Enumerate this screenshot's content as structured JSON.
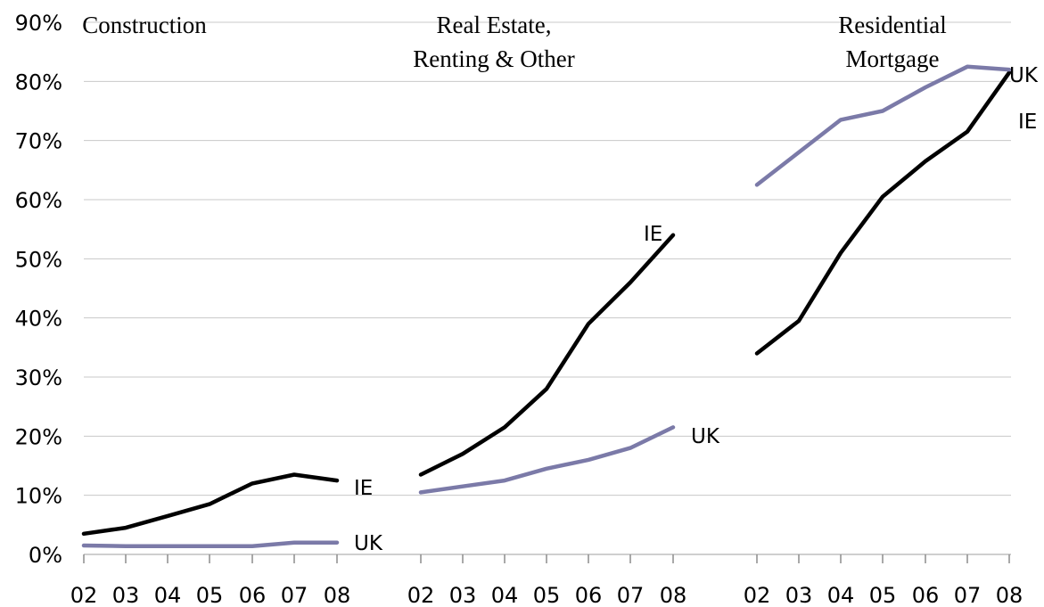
{
  "chart_data": {
    "type": "line",
    "y_tick_labels": [
      "0%",
      "10%",
      "20%",
      "30%",
      "40%",
      "50%",
      "60%",
      "70%",
      "80%",
      "90%"
    ],
    "ylim": [
      0,
      90
    ],
    "grid": true,
    "colors": {
      "IE": "#000000",
      "UK": "#7b7aa8"
    },
    "panels": [
      {
        "title_lines": [
          "Construction"
        ],
        "x": [
          "02",
          "03",
          "04",
          "05",
          "06",
          "07",
          "08"
        ],
        "series": [
          {
            "name": "IE",
            "values": [
              3.5,
              4.5,
              6.5,
              8.5,
              12,
              13.5,
              12.5
            ]
          },
          {
            "name": "UK",
            "values": [
              1.5,
              1.4,
              1.4,
              1.4,
              1.4,
              2.0,
              2.0
            ]
          }
        ]
      },
      {
        "title_lines": [
          "Real Estate,",
          "Renting & Other"
        ],
        "x": [
          "02",
          "03",
          "04",
          "05",
          "06",
          "07",
          "08"
        ],
        "series": [
          {
            "name": "IE",
            "values": [
              13.5,
              17,
              21.5,
              28,
              39,
              46,
              54
            ]
          },
          {
            "name": "UK",
            "values": [
              10.5,
              11.5,
              12.5,
              14.5,
              16,
              18,
              21.5
            ]
          }
        ]
      },
      {
        "title_lines": [
          "Residential",
          "Mortgage"
        ],
        "x": [
          "02",
          "03",
          "04",
          "05",
          "06",
          "07",
          "08"
        ],
        "series": [
          {
            "name": "IE",
            "values": [
              34,
              39.5,
              51,
              60.5,
              66.5,
              71.5,
              81.5
            ]
          },
          {
            "name": "UK",
            "values": [
              62.5,
              68,
              73.5,
              75,
              79,
              82.5,
              82
            ]
          }
        ]
      }
    ]
  }
}
